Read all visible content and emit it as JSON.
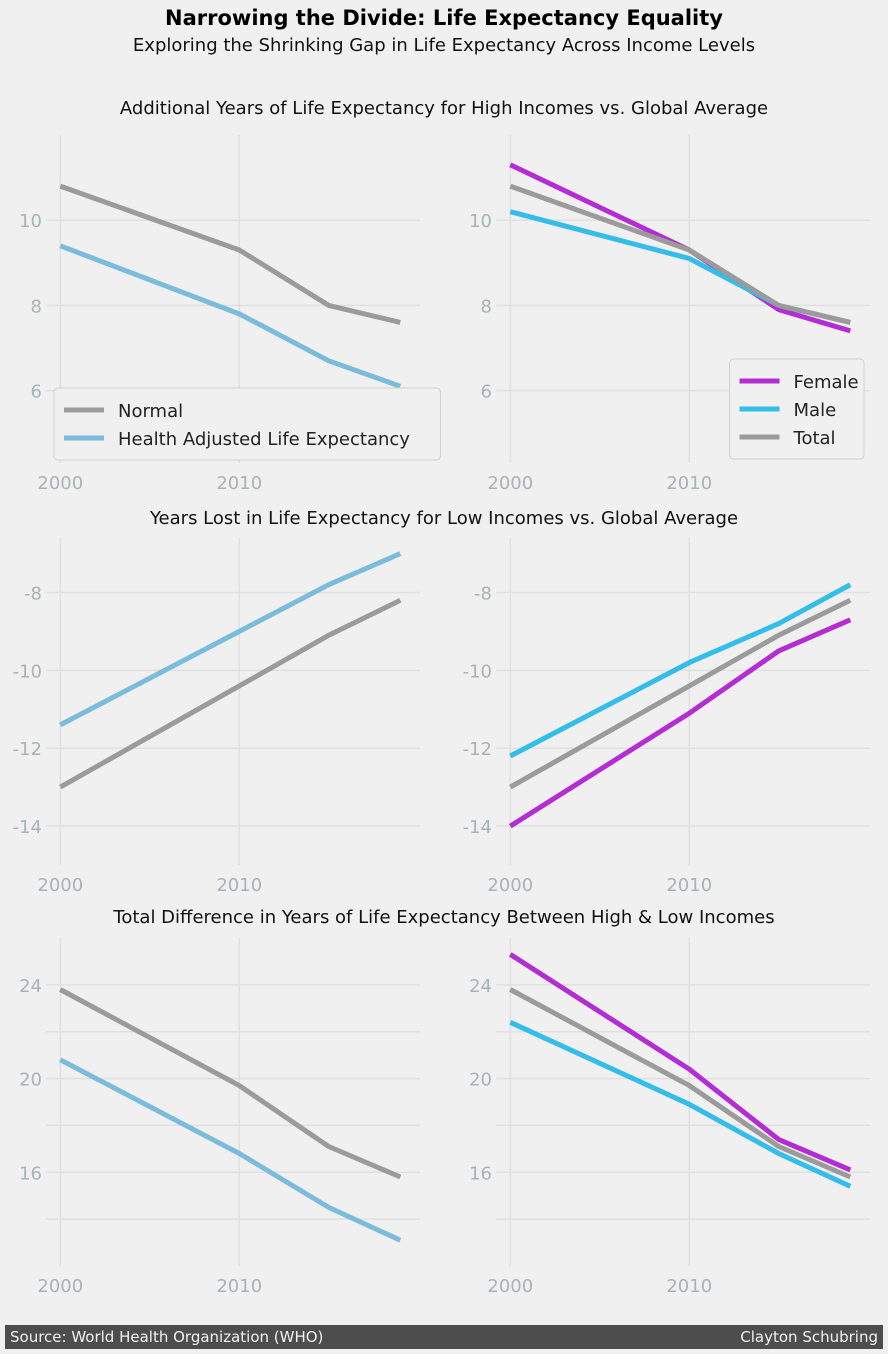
{
  "header": {
    "title": "Narrowing the Divide: Life Expectancy Equality",
    "subtitle": "Exploring the Shrinking Gap in Life Expectancy Across Income Levels"
  },
  "rows": [
    {
      "title": "Additional Years of Life Expectancy for High Incomes vs. Global Average"
    },
    {
      "title": "Years Lost in Life Expectancy for Low Incomes vs. Global Average"
    },
    {
      "title": "Total Difference in Years of Life Expectancy Between High & Low Incomes"
    }
  ],
  "footer": {
    "source": "Source: World Health Organization (WHO)",
    "author": "Clayton Schubring"
  },
  "colors": {
    "normal": "#9b9b9b",
    "hale": "#7bbcdb",
    "female": "#b42dd3",
    "male": "#33bde8",
    "total": "#9b9b9b",
    "grid": "#e0e0e0",
    "tick": "#a9b2b7"
  },
  "chart_data": [
    {
      "type": "line",
      "x": [
        2000,
        2010,
        2015,
        2019
      ],
      "xticks": [
        2000,
        2010
      ],
      "xtick_labels": [
        "2000",
        "2010"
      ],
      "yticks": [
        6,
        8,
        10
      ],
      "ytick_labels": [
        "6",
        "8",
        "10"
      ],
      "xlim": [
        1999.2,
        2020.1
      ],
      "ylim": [
        4.3,
        12.0
      ],
      "legend": "lower-left",
      "series": [
        {
          "name": "Normal",
          "values": [
            10.8,
            9.3,
            8.0,
            7.6
          ],
          "color": "#9b9b9b"
        },
        {
          "name": "Health Adjusted Life Expectancy",
          "values": [
            9.4,
            7.8,
            6.7,
            6.1
          ],
          "color": "#7bbcdb"
        }
      ]
    },
    {
      "type": "line",
      "x": [
        2000,
        2010,
        2015,
        2019
      ],
      "xticks": [
        2000,
        2010
      ],
      "xtick_labels": [
        "2000",
        "2010"
      ],
      "yticks": [
        6,
        8,
        10
      ],
      "ytick_labels": [
        "6",
        "8",
        "10"
      ],
      "xlim": [
        1999.2,
        2020.1
      ],
      "ylim": [
        4.3,
        12.0
      ],
      "legend": "lower-right",
      "series": [
        {
          "name": "Female",
          "values": [
            11.3,
            9.3,
            7.9,
            7.4
          ],
          "color": "#b42dd3"
        },
        {
          "name": "Male",
          "values": [
            10.2,
            9.1,
            8.0,
            7.6
          ],
          "color": "#33bde8"
        },
        {
          "name": "Total",
          "values": [
            10.8,
            9.3,
            8.0,
            7.6
          ],
          "color": "#9b9b9b"
        }
      ]
    },
    {
      "type": "line",
      "x": [
        2000,
        2010,
        2015,
        2019
      ],
      "xticks": [
        2000,
        2010
      ],
      "xtick_labels": [
        "2000",
        "2010"
      ],
      "yticks": [
        -14,
        -12,
        -10,
        -8
      ],
      "ytick_labels": [
        "-14",
        "-12",
        "-10",
        "-8"
      ],
      "xlim": [
        1999.2,
        2020.1
      ],
      "ylim": [
        -15.0,
        -6.6
      ],
      "series": [
        {
          "values": [
            -11.4,
            -9.0,
            -7.8,
            -7.0
          ],
          "color": "#7bbcdb"
        },
        {
          "values": [
            -13.0,
            -10.4,
            -9.1,
            -8.2
          ],
          "color": "#9b9b9b"
        }
      ]
    },
    {
      "type": "line",
      "x": [
        2000,
        2010,
        2015,
        2019
      ],
      "xticks": [
        2000,
        2010
      ],
      "xtick_labels": [
        "2000",
        "2010"
      ],
      "yticks": [
        -14,
        -12,
        -10,
        -8
      ],
      "ytick_labels": [
        "-14",
        "-12",
        "-10",
        "-8"
      ],
      "xlim": [
        1999.2,
        2020.1
      ],
      "ylim": [
        -15.0,
        -6.6
      ],
      "series": [
        {
          "values": [
            -12.2,
            -9.8,
            -8.8,
            -7.8
          ],
          "color": "#33bde8"
        },
        {
          "values": [
            -13.0,
            -10.4,
            -9.1,
            -8.2
          ],
          "color": "#9b9b9b"
        },
        {
          "values": [
            -14.0,
            -11.1,
            -9.5,
            -8.7
          ],
          "color": "#b42dd3"
        }
      ]
    },
    {
      "type": "line",
      "x": [
        2000,
        2010,
        2015,
        2019
      ],
      "xticks": [
        2000,
        2010
      ],
      "xtick_labels": [
        "2000",
        "2010"
      ],
      "yticks": [
        16,
        20,
        24
      ],
      "ytick_labels": [
        "16",
        "20",
        "24"
      ],
      "ygrid": [
        14,
        16,
        18,
        20,
        22,
        24
      ],
      "xlim": [
        1999.2,
        2020.1
      ],
      "ylim": [
        12.0,
        26.0
      ],
      "series": [
        {
          "values": [
            23.8,
            19.7,
            17.1,
            15.8
          ],
          "color": "#9b9b9b"
        },
        {
          "values": [
            20.8,
            16.8,
            14.5,
            13.1
          ],
          "color": "#7bbcdb"
        }
      ]
    },
    {
      "type": "line",
      "x": [
        2000,
        2010,
        2015,
        2019
      ],
      "xticks": [
        2000,
        2010
      ],
      "xtick_labels": [
        "2000",
        "2010"
      ],
      "yticks": [
        16,
        20,
        24
      ],
      "ytick_labels": [
        "16",
        "20",
        "24"
      ],
      "ygrid": [
        14,
        16,
        18,
        20,
        22,
        24
      ],
      "xlim": [
        1999.2,
        2020.1
      ],
      "ylim": [
        12.0,
        26.0
      ],
      "series": [
        {
          "values": [
            25.3,
            20.4,
            17.4,
            16.1
          ],
          "color": "#b42dd3"
        },
        {
          "values": [
            23.8,
            19.7,
            17.1,
            15.8
          ],
          "color": "#9b9b9b"
        },
        {
          "values": [
            22.4,
            18.9,
            16.8,
            15.4
          ],
          "color": "#33bde8"
        }
      ]
    }
  ]
}
